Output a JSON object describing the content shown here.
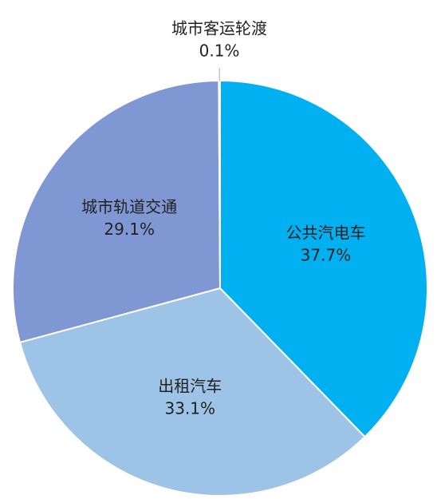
{
  "chart_data": {
    "type": "pie",
    "categories": [
      "公共汽电车",
      "出租汽车",
      "城市轨道交通",
      "城市客运轮渡"
    ],
    "values": [
      37.7,
      33.1,
      29.1,
      0.1
    ],
    "value_labels": [
      "37.7%",
      "33.1%",
      "29.1%",
      "0.1%"
    ],
    "colors": [
      "#00b0f0",
      "#9dc3e6",
      "#7f97d3",
      "#4472c4"
    ]
  }
}
